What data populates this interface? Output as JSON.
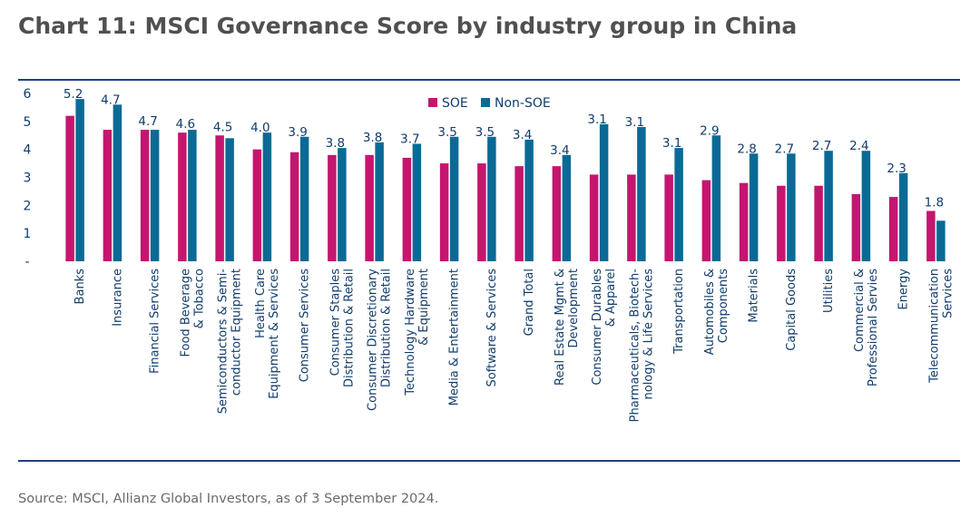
{
  "title": "Chart 11: MSCI Governance Score by industry group in China",
  "source": "Source: MSCI, Allianz Global Investors, as of 3 September 2024.",
  "colors": {
    "soe": "#c4166e",
    "non_soe": "#0b6a95",
    "rule": "#1f3f86",
    "text": "#123c6b"
  },
  "chart_data": {
    "type": "bar",
    "title": "Chart 11: MSCI Governance Score by industry group in China",
    "xlabel": "",
    "ylabel": "",
    "ylim": [
      0,
      6
    ],
    "yticks": [
      "-",
      "1",
      "2",
      "3",
      "4",
      "5",
      "6"
    ],
    "legend_position": "top-center",
    "grid": false,
    "categories": [
      [
        "Banks"
      ],
      [
        "Insurance"
      ],
      [
        "Financial Services"
      ],
      [
        "Food Beverage",
        "& Tobacco"
      ],
      [
        "Semiconductors & Semi-",
        "conductor Equipment"
      ],
      [
        "Health Care",
        "Equipment & Services"
      ],
      [
        "Consumer Services"
      ],
      [
        "Consumer Staples",
        "Distribution & Retail"
      ],
      [
        "Consumer Discretionary",
        "Distribution & Retail"
      ],
      [
        "Technology Hardware",
        "& Equipment"
      ],
      [
        "Media & Entertainment"
      ],
      [
        "Software & Services"
      ],
      [
        "Grand Total"
      ],
      [
        "Real Estate Mgmt &",
        "Development"
      ],
      [
        "Consumer Durables",
        "& Apparel"
      ],
      [
        "Pharmaceuticals, Biotech-",
        "nology & Life Services"
      ],
      [
        "Transportation"
      ],
      [
        "Automobiles &",
        "Components"
      ],
      [
        "Materials"
      ],
      [
        "Capital Goods"
      ],
      [
        "Utilities"
      ],
      [
        "Commercial &",
        "Professional Servies"
      ],
      [
        "Energy"
      ],
      [
        "Telecommunication",
        "Services"
      ]
    ],
    "series": [
      {
        "name": "SOE",
        "color": "#c4166e",
        "values": [
          5.2,
          4.7,
          4.7,
          4.6,
          4.5,
          4.0,
          3.9,
          3.8,
          3.8,
          3.7,
          3.5,
          3.5,
          3.4,
          3.4,
          3.1,
          3.1,
          3.1,
          2.9,
          2.8,
          2.7,
          2.7,
          2.4,
          2.3,
          1.8
        ],
        "labels": [
          "5.2",
          "4.7",
          "4.7",
          "4.6",
          "4.5",
          "4.0",
          "3.9",
          "3.8",
          "3.8",
          "3.7",
          "3.5",
          "3.5",
          "3.4",
          "3.4",
          "3.1",
          "3.1",
          "3.1",
          "2.9",
          "2.8",
          "2.7",
          "2.7",
          "2.4",
          "2.3",
          "1.8"
        ]
      },
      {
        "name": "Non-SOE",
        "color": "#0b6a95",
        "values": [
          5.8,
          5.6,
          4.7,
          4.7,
          4.4,
          4.6,
          4.45,
          4.05,
          4.25,
          4.2,
          4.45,
          4.45,
          4.35,
          3.8,
          4.9,
          4.8,
          4.05,
          4.5,
          3.85,
          3.85,
          3.95,
          3.95,
          3.15,
          1.45
        ]
      }
    ]
  }
}
